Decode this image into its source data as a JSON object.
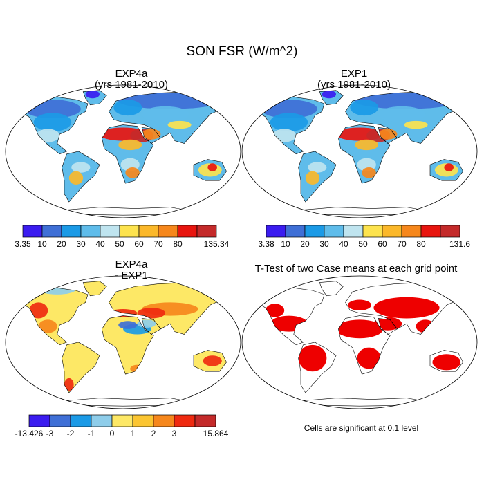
{
  "figure": {
    "title": "SON FSR (W/m^2)"
  },
  "panels": [
    {
      "id": "exp4a",
      "title_line1": "EXP4a",
      "title_line2": "(yrs 1981-2010)",
      "field": "climatology"
    },
    {
      "id": "exp1",
      "title_line1": "EXP1",
      "title_line2": "(yrs 1981-2010)",
      "field": "climatology"
    },
    {
      "id": "diff",
      "title_line1": "EXP4a",
      "title_line2": "- EXP1",
      "field": "difference"
    },
    {
      "id": "ttest",
      "title_line1": "T-Test of two Case means at each grid point",
      "title_line2": "",
      "field": "significance",
      "note": "Cells are significant at 0.1 level",
      "significant_color": "#ee0000"
    }
  ],
  "colorbars": {
    "exp4a": {
      "labels": [
        "3.35",
        "10",
        "20",
        "30",
        "40",
        "50",
        "60",
        "70",
        "80",
        "135.34"
      ],
      "colors": [
        "#3b1cf0",
        "#3f6fd6",
        "#1b9ae6",
        "#5fbcea",
        "#bfe4ef",
        "#fde34e",
        "#fbb82a",
        "#f6871c",
        "#e8150f",
        "#c42a2a"
      ]
    },
    "exp1": {
      "labels": [
        "3.38",
        "10",
        "20",
        "30",
        "40",
        "50",
        "60",
        "70",
        "80",
        "131.6"
      ],
      "colors": [
        "#3b1cf0",
        "#3f6fd6",
        "#1b9ae6",
        "#5fbcea",
        "#bfe4ef",
        "#fde34e",
        "#fbb82a",
        "#f6871c",
        "#e8150f",
        "#c42a2a"
      ]
    },
    "diff": {
      "labels": [
        "-13.426",
        "-3",
        "-2",
        "-1",
        "0",
        "1",
        "2",
        "3",
        "15.864"
      ],
      "colors": [
        "#3b1cf0",
        "#3f6fd6",
        "#1b9ae6",
        "#8ecdea",
        "#fde866",
        "#fbc531",
        "#f6871c",
        "#ef2a10",
        "#c42a2a"
      ]
    }
  },
  "chart_data": {
    "type": "heatmap",
    "title": "SON FSR (W/m^2)",
    "variable": "FSR",
    "units": "W/m^2",
    "season": "SON",
    "maps": [
      {
        "name": "EXP4a (yrs 1981-2010)",
        "range": [
          3.35,
          135.34
        ],
        "contour_levels": [
          10,
          20,
          30,
          40,
          50,
          60,
          70,
          80
        ]
      },
      {
        "name": "EXP1 (yrs 1981-2010)",
        "range": [
          3.38,
          131.6
        ],
        "contour_levels": [
          10,
          20,
          30,
          40,
          50,
          60,
          70,
          80
        ]
      },
      {
        "name": "EXP4a - EXP1",
        "range": [
          -13.426,
          15.864
        ],
        "contour_levels": [
          -3,
          -2,
          -1,
          0,
          1,
          2,
          3
        ]
      },
      {
        "name": "T-Test of two Case means at each grid point",
        "significance_level": 0.1
      }
    ]
  }
}
